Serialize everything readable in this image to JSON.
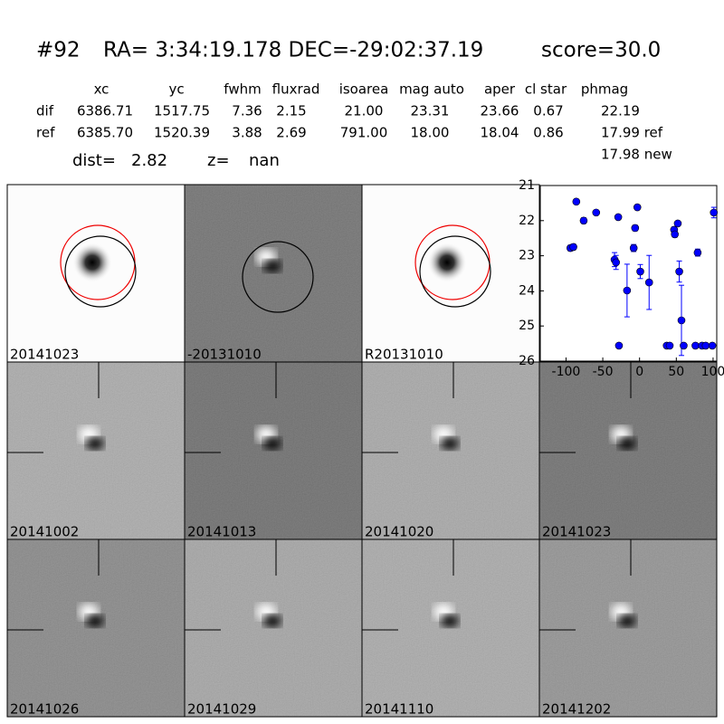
{
  "header": {
    "id": "#92",
    "coords": "RA= 3:34:19.178 DEC=-29:02:37.19",
    "score": "score=30.0"
  },
  "table": {
    "columns": [
      "xc",
      "yc",
      "fwhm",
      "fluxrad",
      "isoarea",
      "mag auto",
      "aper",
      "cl star",
      "phmag"
    ],
    "rows": [
      {
        "label": "dif",
        "cells": [
          "6386.71",
          "1517.75",
          "7.36",
          "2.15",
          "21.00",
          "23.31",
          "23.66",
          "0.67",
          "22.19"
        ]
      },
      {
        "label": "ref",
        "cells": [
          "6385.70",
          "1520.39",
          "3.88",
          "2.69",
          "791.00",
          "18.00",
          "18.04",
          "0.86",
          "17.99 ref"
        ]
      }
    ],
    "extra": "17.98 new"
  },
  "distance": {
    "dist_label": "dist=",
    "dist": "2.82",
    "z_label": "z=",
    "z": "nan"
  },
  "panels": [
    {
      "label": "20141023",
      "background": "#fcfcfc"
    },
    {
      "label": "-20131010",
      "background": "#6e6e6e"
    },
    {
      "label": "R20131010",
      "background": "#fcfcfc"
    },
    {
      "label": "20141002",
      "background": "#a9a9a9"
    },
    {
      "label": "20141013",
      "background": "#6a6a6a"
    },
    {
      "label": "20141020",
      "background": "#a6a6a6"
    },
    {
      "label": "20141023",
      "background": "#6c6c6c",
      "highlight": true
    },
    {
      "label": "20141026",
      "background": "#858585"
    },
    {
      "label": "20141029",
      "background": "#a3a3a3"
    },
    {
      "label": "20141110",
      "background": "#a8a8a8"
    },
    {
      "label": "20141202",
      "background": "#909090"
    }
  ],
  "chart_data": {
    "type": "scatter",
    "color": "#0000ff",
    "x": [
      -94,
      -90,
      -86,
      -76,
      -59,
      -34,
      -32,
      -29,
      -28,
      -17,
      -8,
      -6,
      -3,
      1,
      13,
      37,
      41,
      47,
      48,
      52,
      54,
      57,
      60,
      76,
      79,
      85,
      90,
      99,
      101
    ],
    "values": [
      22.78,
      22.75,
      21.46,
      22.0,
      21.77,
      23.11,
      23.19,
      21.9,
      25.56,
      23.99,
      22.78,
      22.21,
      21.62,
      23.45,
      23.76,
      25.56,
      25.56,
      22.26,
      22.39,
      22.08,
      23.45,
      24.84,
      25.56,
      25.56,
      22.91,
      25.56,
      25.56,
      25.56,
      21.77
    ],
    "errors": [
      0.08,
      0.08,
      0.05,
      0.08,
      0.05,
      0.2,
      0.2,
      0.05,
      0.05,
      0.75,
      0.1,
      0.08,
      0.05,
      0.2,
      0.77,
      0.05,
      0.05,
      0.08,
      0.08,
      0.05,
      0.3,
      1.0,
      0.05,
      0.05,
      0.1,
      0.05,
      0.05,
      0.05,
      0.15
    ],
    "xlim": [
      -135,
      105
    ],
    "ylim": [
      21,
      26
    ],
    "invert_y": true,
    "xticks": [
      -100,
      -50,
      0,
      50,
      100
    ],
    "yticks": [
      21,
      22,
      23,
      24,
      25,
      26
    ]
  }
}
